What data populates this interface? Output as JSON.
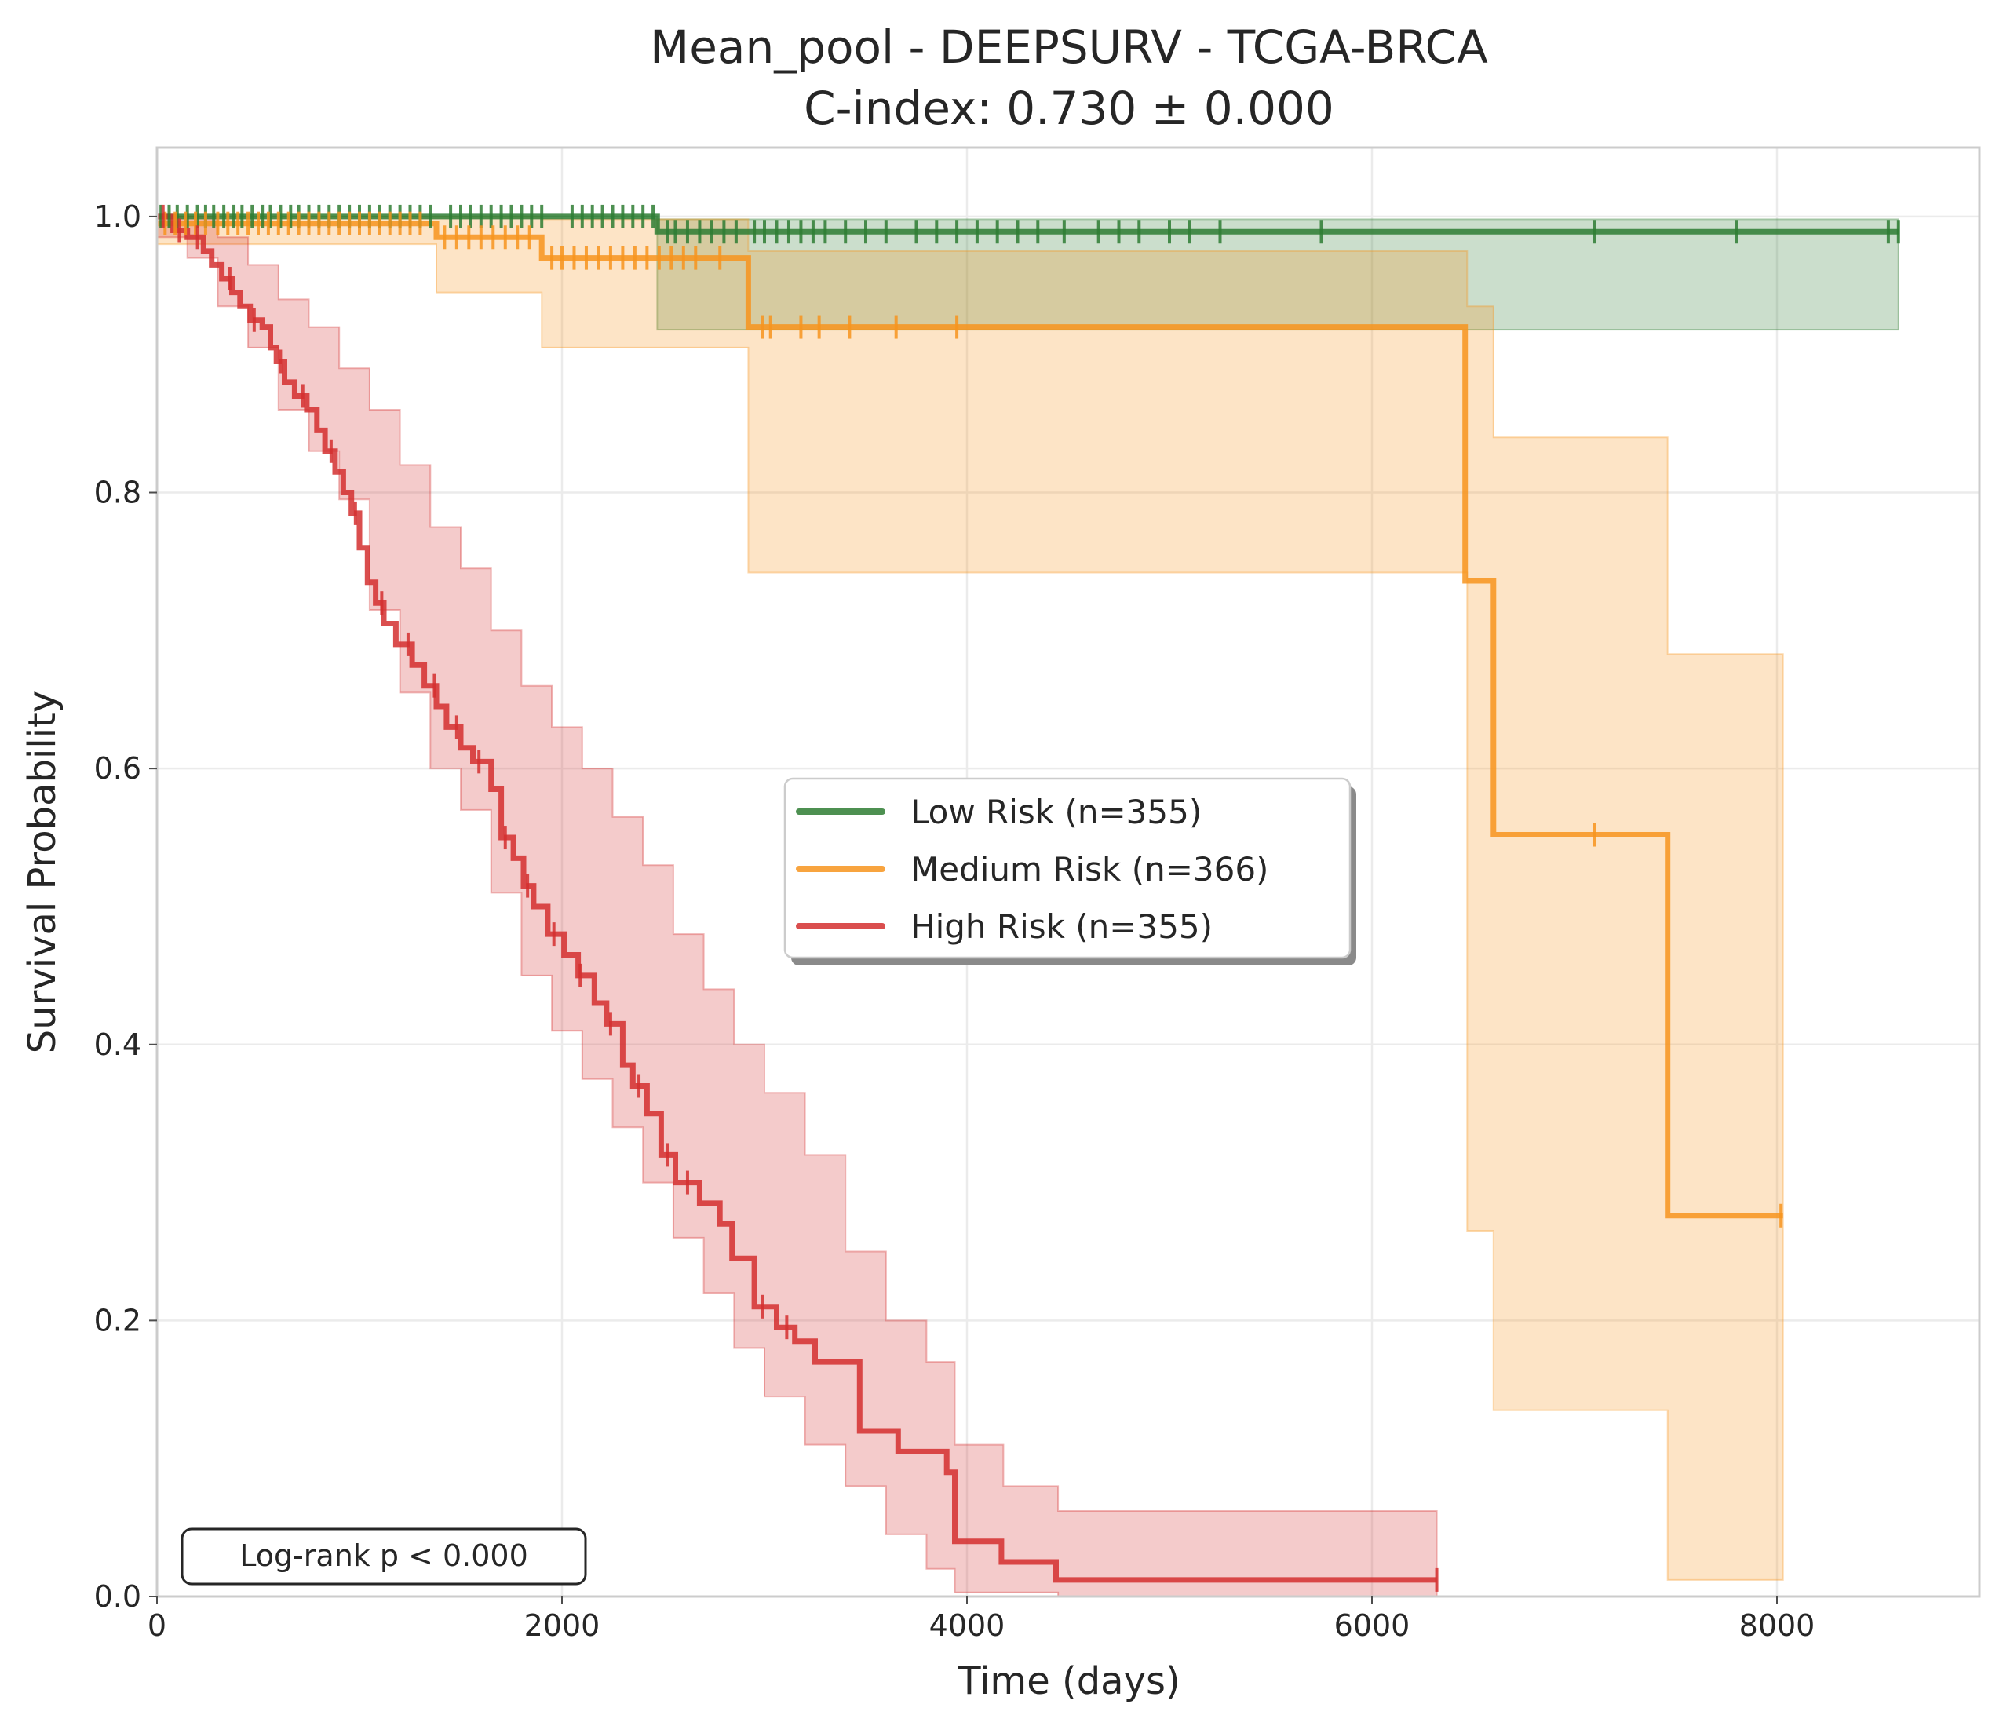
{
  "chart_data": {
    "type": "line",
    "title": "Mean_pool - DEEPSURV - TCGA-BRCA",
    "subtitle": "C-index: 0.730 ± 0.000",
    "xlabel": "Time (days)",
    "ylabel": "Survival Probability",
    "xlim": [
      0,
      9000
    ],
    "ylim": [
      0,
      1.05
    ],
    "xticks": [
      0,
      2000,
      4000,
      6000,
      8000
    ],
    "yticks": [
      0.0,
      0.2,
      0.4,
      0.6,
      0.8,
      1.0
    ],
    "xtick_labels": [
      "0",
      "2000",
      "4000",
      "6000",
      "8000"
    ],
    "ytick_labels": [
      "0.0",
      "0.2",
      "0.4",
      "0.6",
      "0.8",
      "1.0"
    ],
    "grid": true,
    "legend_position": "center-right",
    "annotation": "Log-rank p < 0.000",
    "series": [
      {
        "name": "Low Risk (n=355)",
        "color": "#2e7d32",
        "steps": [
          [
            0,
            1.0
          ],
          [
            2470,
            0.989
          ],
          [
            8600,
            0.989
          ]
        ],
        "ci_upper": [
          [
            0,
            1.0
          ],
          [
            2470,
            0.998
          ],
          [
            8600,
            0.998
          ]
        ],
        "ci_lower": [
          [
            0,
            1.0
          ],
          [
            2470,
            0.918
          ],
          [
            8600,
            0.918
          ]
        ],
        "censor_times": [
          20,
          60,
          100,
          150,
          200,
          240,
          280,
          330,
          380,
          420,
          470,
          520,
          560,
          610,
          660,
          700,
          750,
          800,
          850,
          900,
          950,
          1000,
          1050,
          1100,
          1150,
          1200,
          1250,
          1300,
          1350,
          1450,
          1500,
          1550,
          1600,
          1650,
          1700,
          1750,
          1800,
          1850,
          1900,
          2050,
          2100,
          2150,
          2200,
          2250,
          2300,
          2350,
          2400,
          2450,
          2520,
          2560,
          2620,
          2680,
          2740,
          2800,
          2860,
          2950,
          3000,
          3060,
          3120,
          3180,
          3240,
          3300,
          3400,
          3500,
          3600,
          3750,
          3850,
          3950,
          4050,
          4150,
          4250,
          4350,
          4480,
          4650,
          4750,
          4850,
          5000,
          5100,
          5250,
          5750,
          7100,
          7800,
          8550,
          8600
        ]
      },
      {
        "name": "Medium Risk (n=366)",
        "color": "#f7941d",
        "steps": [
          [
            0,
            0.995
          ],
          [
            1380,
            0.985
          ],
          [
            1900,
            0.97
          ],
          [
            2920,
            0.92
          ],
          [
            6460,
            0.736
          ],
          [
            6600,
            0.552
          ],
          [
            7460,
            0.276
          ],
          [
            8030,
            0.276
          ]
        ],
        "ci_upper": [
          [
            0,
            1.0
          ],
          [
            1900,
            0.998
          ],
          [
            2920,
            0.975
          ],
          [
            6470,
            0.935
          ],
          [
            6600,
            0.84
          ],
          [
            7460,
            0.683
          ],
          [
            8030,
            0.683
          ]
        ],
        "ci_lower": [
          [
            0,
            0.98
          ],
          [
            1380,
            0.945
          ],
          [
            1900,
            0.905
          ],
          [
            2920,
            0.742
          ],
          [
            6470,
            0.265
          ],
          [
            6600,
            0.135
          ],
          [
            7460,
            0.012
          ],
          [
            8030,
            0.012
          ]
        ],
        "censor_times": [
          40,
          90,
          140,
          190,
          240,
          300,
          350,
          400,
          450,
          500,
          550,
          600,
          650,
          700,
          750,
          800,
          850,
          900,
          950,
          1000,
          1050,
          1100,
          1150,
          1200,
          1250,
          1300,
          1420,
          1480,
          1540,
          1600,
          1660,
          1720,
          1780,
          1840,
          1950,
          2000,
          2060,
          2120,
          2180,
          2240,
          2300,
          2360,
          2420,
          2480,
          2540,
          2600,
          2660,
          2780,
          2990,
          3030,
          3180,
          3270,
          3420,
          3650,
          3950,
          7100,
          8020
        ]
      },
      {
        "name": "High Risk (n=355)",
        "color": "#d32f2f",
        "steps": [
          [
            0,
            1.0
          ],
          [
            80,
            0.99
          ],
          [
            150,
            0.985
          ],
          [
            230,
            0.975
          ],
          [
            270,
            0.965
          ],
          [
            320,
            0.955
          ],
          [
            370,
            0.945
          ],
          [
            410,
            0.935
          ],
          [
            460,
            0.925
          ],
          [
            520,
            0.92
          ],
          [
            560,
            0.905
          ],
          [
            590,
            0.895
          ],
          [
            630,
            0.88
          ],
          [
            680,
            0.87
          ],
          [
            740,
            0.86
          ],
          [
            790,
            0.845
          ],
          [
            830,
            0.83
          ],
          [
            880,
            0.815
          ],
          [
            920,
            0.8
          ],
          [
            960,
            0.785
          ],
          [
            1000,
            0.76
          ],
          [
            1040,
            0.735
          ],
          [
            1080,
            0.72
          ],
          [
            1120,
            0.705
          ],
          [
            1180,
            0.69
          ],
          [
            1260,
            0.675
          ],
          [
            1320,
            0.66
          ],
          [
            1380,
            0.645
          ],
          [
            1430,
            0.63
          ],
          [
            1500,
            0.615
          ],
          [
            1560,
            0.605
          ],
          [
            1650,
            0.585
          ],
          [
            1700,
            0.55
          ],
          [
            1760,
            0.535
          ],
          [
            1810,
            0.515
          ],
          [
            1860,
            0.5
          ],
          [
            1930,
            0.48
          ],
          [
            2010,
            0.465
          ],
          [
            2080,
            0.45
          ],
          [
            2160,
            0.43
          ],
          [
            2220,
            0.415
          ],
          [
            2300,
            0.385
          ],
          [
            2350,
            0.37
          ],
          [
            2420,
            0.35
          ],
          [
            2490,
            0.32
          ],
          [
            2560,
            0.3
          ],
          [
            2680,
            0.285
          ],
          [
            2780,
            0.27
          ],
          [
            2840,
            0.245
          ],
          [
            2950,
            0.21
          ],
          [
            3060,
            0.195
          ],
          [
            3150,
            0.185
          ],
          [
            3250,
            0.17
          ],
          [
            3470,
            0.12
          ],
          [
            3660,
            0.105
          ],
          [
            3900,
            0.09
          ],
          [
            3940,
            0.04
          ],
          [
            4170,
            0.025
          ],
          [
            4440,
            0.012
          ],
          [
            6320,
            0.012
          ]
        ],
        "ci_upper": [
          [
            0,
            1.0
          ],
          [
            150,
            1.0
          ],
          [
            300,
            0.985
          ],
          [
            450,
            0.965
          ],
          [
            600,
            0.94
          ],
          [
            750,
            0.92
          ],
          [
            900,
            0.89
          ],
          [
            1050,
            0.86
          ],
          [
            1200,
            0.82
          ],
          [
            1350,
            0.775
          ],
          [
            1500,
            0.745
          ],
          [
            1650,
            0.7
          ],
          [
            1800,
            0.66
          ],
          [
            1950,
            0.63
          ],
          [
            2100,
            0.6
          ],
          [
            2250,
            0.565
          ],
          [
            2400,
            0.53
          ],
          [
            2550,
            0.48
          ],
          [
            2700,
            0.44
          ],
          [
            2850,
            0.4
          ],
          [
            3000,
            0.365
          ],
          [
            3200,
            0.32
          ],
          [
            3400,
            0.25
          ],
          [
            3600,
            0.2
          ],
          [
            3800,
            0.17
          ],
          [
            3940,
            0.11
          ],
          [
            4180,
            0.08
          ],
          [
            4450,
            0.062
          ],
          [
            6320,
            0.062
          ]
        ],
        "ci_lower": [
          [
            0,
            0.985
          ],
          [
            150,
            0.97
          ],
          [
            300,
            0.935
          ],
          [
            450,
            0.905
          ],
          [
            600,
            0.86
          ],
          [
            750,
            0.83
          ],
          [
            900,
            0.795
          ],
          [
            1050,
            0.715
          ],
          [
            1200,
            0.655
          ],
          [
            1350,
            0.6
          ],
          [
            1500,
            0.57
          ],
          [
            1650,
            0.51
          ],
          [
            1800,
            0.45
          ],
          [
            1950,
            0.41
          ],
          [
            2100,
            0.375
          ],
          [
            2250,
            0.34
          ],
          [
            2400,
            0.3
          ],
          [
            2550,
            0.26
          ],
          [
            2700,
            0.22
          ],
          [
            2850,
            0.18
          ],
          [
            3000,
            0.145
          ],
          [
            3200,
            0.11
          ],
          [
            3400,
            0.08
          ],
          [
            3600,
            0.045
          ],
          [
            3800,
            0.02
          ],
          [
            3940,
            0.003
          ],
          [
            4450,
            0.0
          ],
          [
            6320,
            0.0
          ]
        ],
        "censor_times": [
          30,
          110,
          200,
          360,
          480,
          610,
          720,
          860,
          980,
          1110,
          1240,
          1370,
          1480,
          1590,
          1720,
          1830,
          1960,
          2090,
          2240,
          2380,
          2520,
          2620,
          2990,
          3110,
          6320
        ]
      }
    ]
  }
}
